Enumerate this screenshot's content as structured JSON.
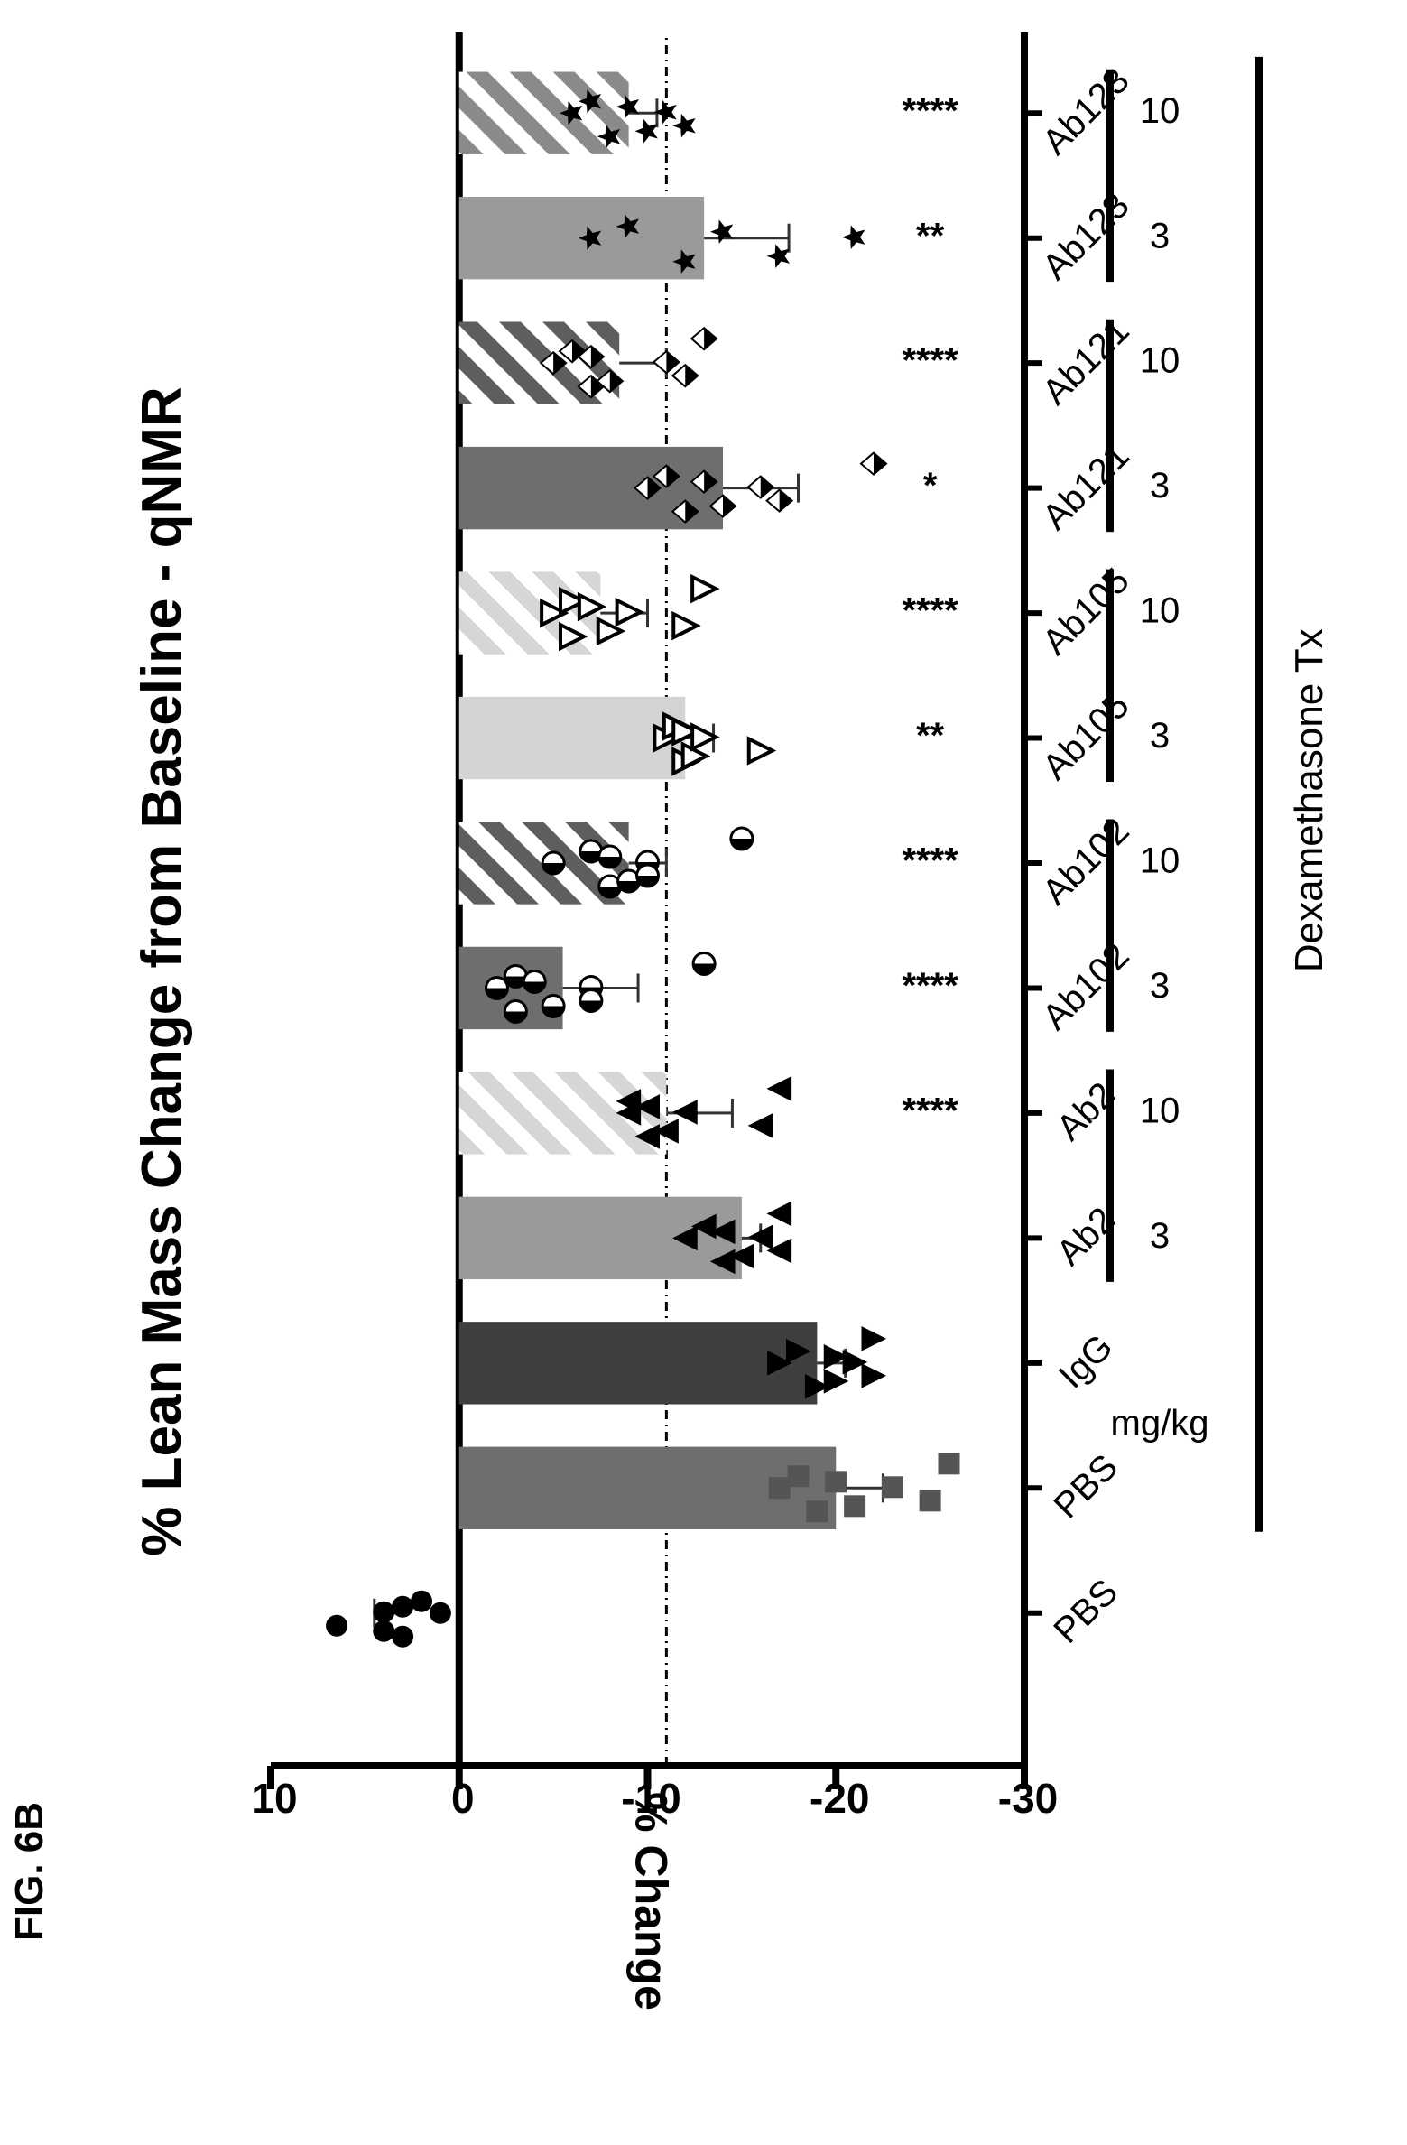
{
  "figure_label": "FIG. 6B",
  "chart_data": {
    "type": "bar",
    "orientation": "vertical (figure printed rotated 90° counter-clockwise)",
    "title": "% Lean Mass Change from Baseline - qNMR",
    "ylabel": "% Change",
    "ylim": [
      -30,
      10
    ],
    "yticks": [
      10,
      0,
      -10,
      -20,
      -30
    ],
    "reference_line": {
      "y": -11,
      "style": "dash-dot"
    },
    "categories": [
      "PBS",
      "PBS",
      "IgG",
      "Ab2",
      "Ab2",
      "Ab102",
      "Ab102",
      "Ab105",
      "Ab105",
      "Ab121",
      "Ab121",
      "Ab123",
      "Ab123"
    ],
    "dose_label": "mg/kg",
    "dose_groups": [
      {
        "label": "3"
      },
      {
        "label": "10"
      },
      {
        "label": "3"
      },
      {
        "label": "10"
      },
      {
        "label": "3"
      },
      {
        "label": "10"
      },
      {
        "label": "3"
      },
      {
        "label": "10"
      },
      {
        "label": "3"
      },
      {
        "label": "10"
      }
    ],
    "treatment_label": "Dexamethasone Tx",
    "bars": [
      {
        "category": "PBS",
        "value": 3,
        "error": 1.5,
        "fill": "none",
        "color": "#ffffff",
        "marker": "circle",
        "points": [
          1,
          2,
          3,
          3,
          4,
          4,
          6.5
        ],
        "significance": ""
      },
      {
        "category": "PBS",
        "value": -20,
        "error": 2.5,
        "fill": "solid",
        "color": "#6e6e6e",
        "marker": "square",
        "points": [
          -17,
          -18,
          -19,
          -20,
          -21,
          -23,
          -25,
          -26
        ],
        "significance": ""
      },
      {
        "category": "IgG",
        "value": -19,
        "error": 1.5,
        "fill": "solid",
        "color": "#3e3e3e",
        "marker": "triangle-left",
        "points": [
          -17,
          -18,
          -19,
          -20,
          -20,
          -21,
          -22,
          -22
        ],
        "significance": ""
      },
      {
        "category": "Ab2",
        "value": -15,
        "error": 1.0,
        "fill": "solid",
        "color": "#9a9a9a",
        "marker": "triangle-right",
        "points": [
          -12,
          -13,
          -14,
          -14,
          -15,
          -16,
          -17,
          -17
        ],
        "significance": ""
      },
      {
        "category": "Ab2",
        "value": -11,
        "error": 3.5,
        "fill": "hatched",
        "color": "#b0b0b0",
        "marker": "triangle-right",
        "points": [
          -9,
          -9,
          -10,
          -10,
          -11,
          -12,
          -16,
          -17
        ],
        "significance": "****"
      },
      {
        "category": "Ab102",
        "value": -5.5,
        "error": 4.0,
        "fill": "solid",
        "color": "#6e6e6e",
        "marker": "circle-half",
        "points": [
          -2,
          -3,
          -3,
          -4,
          -5,
          -7,
          -7,
          -13
        ],
        "significance": "****"
      },
      {
        "category": "Ab102",
        "value": -9,
        "error": 2.0,
        "fill": "hatched",
        "color": "#6e6e6e",
        "marker": "circle-half",
        "points": [
          -5,
          -7,
          -8,
          -8,
          -9,
          -10,
          -10,
          -15
        ],
        "significance": "****"
      },
      {
        "category": "Ab105",
        "value": -12,
        "error": 1.5,
        "fill": "solid",
        "color": "#d4d4d4",
        "marker": "triangle-left-open",
        "points": [
          -11,
          -11.5,
          -12,
          -12,
          -12.5,
          -13,
          -16
        ],
        "significance": "**"
      },
      {
        "category": "Ab105",
        "value": -7.5,
        "error": 2.5,
        "fill": "hatched",
        "color": "#d4d4d4",
        "marker": "triangle-left-open",
        "points": [
          -5,
          -6,
          -6,
          -7,
          -8,
          -9,
          -12,
          -13
        ],
        "significance": "****"
      },
      {
        "category": "Ab121",
        "value": -14,
        "error": 4.0,
        "fill": "solid",
        "color": "#6e6e6e",
        "marker": "diamond-half",
        "points": [
          -10,
          -11,
          -12,
          -13,
          -14,
          -16,
          -17,
          -22
        ],
        "significance": "*"
      },
      {
        "category": "Ab121",
        "value": -8.5,
        "error": 2.5,
        "fill": "hatched",
        "color": "#6e6e6e",
        "marker": "diamond-half",
        "points": [
          -5,
          -6,
          -7,
          -7,
          -8,
          -11,
          -12,
          -13
        ],
        "significance": "****"
      },
      {
        "category": "Ab123",
        "value": -13,
        "error": 4.5,
        "fill": "solid",
        "color": "#9a9a9a",
        "marker": "star",
        "points": [
          -7,
          -9,
          -12,
          -14,
          -17,
          -21
        ],
        "significance": "**"
      },
      {
        "category": "Ab123",
        "value": -9,
        "error": 1.5,
        "fill": "hatched",
        "color": "#9a9a9a",
        "marker": "star",
        "points": [
          -6,
          -7,
          -8,
          -9,
          -10,
          -11,
          -12
        ],
        "significance": "****"
      }
    ]
  }
}
